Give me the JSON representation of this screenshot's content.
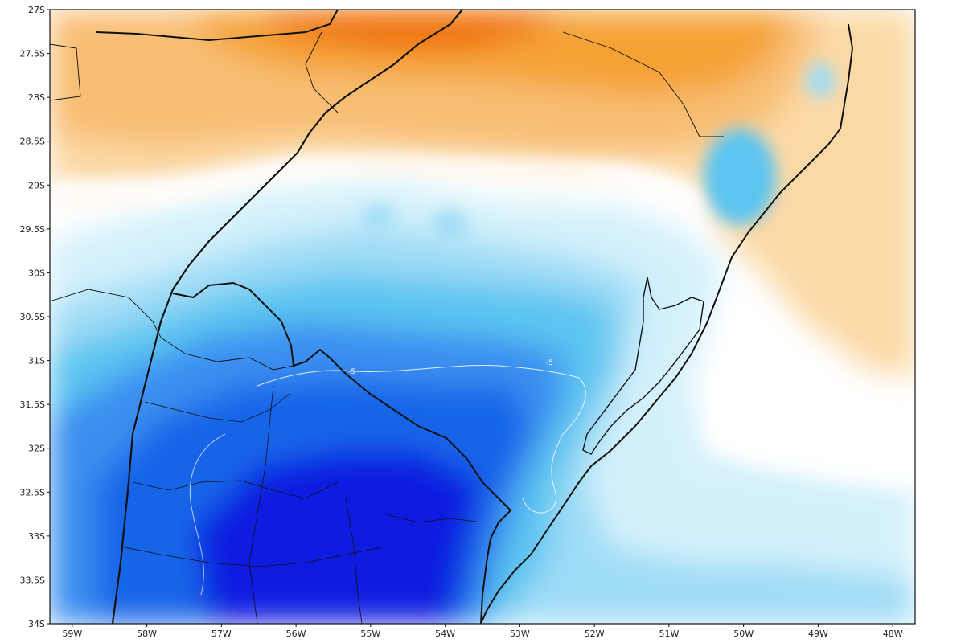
{
  "map": {
    "lat_range": [
      -34,
      -27
    ],
    "lon_range": [
      -59.3,
      -47.7
    ],
    "lat_ticks": [
      "27S",
      "27.5S",
      "28S",
      "28.5S",
      "29S",
      "29.5S",
      "30S",
      "30.5S",
      "31S",
      "31.5S",
      "32S",
      "32.5S",
      "33S",
      "33.5S",
      "34S"
    ],
    "lon_ticks": [
      "59W",
      "58W",
      "57W",
      "56W",
      "55W",
      "54W",
      "53W",
      "52W",
      "51W",
      "50W",
      "49W",
      "48W"
    ],
    "contour_labels": [
      "-5",
      "-5"
    ],
    "colors": {
      "warm_dark": "#ef6c00",
      "warm_mid": "#f5a236",
      "warm_light": "#fbd9a6",
      "neutral": "#ffffff",
      "cool_light": "#d4f1fb",
      "cool_mid": "#5bc4f1",
      "cool_dark": "#1565e8",
      "cool_deepest": "#0a1fe0",
      "border": "#111111"
    }
  }
}
